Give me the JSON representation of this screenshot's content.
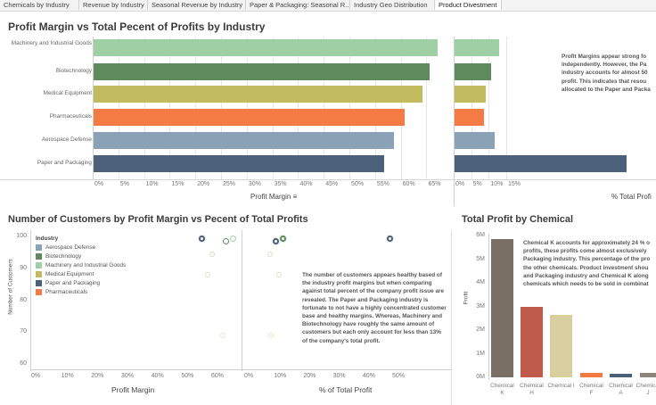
{
  "tabs": [
    "Chemicals by Industry",
    "Revenue by Industry",
    "Seasonal Revenue by Industry",
    "Paper & Packaging: Seasonal R...",
    "Industry Geo Distribution",
    "Product Divestment"
  ],
  "active_tab_index": 5,
  "colors": {
    "machinery": "#9fd0a5",
    "biotechnology": "#5f8a5d",
    "medical": "#c2bb60",
    "pharmaceuticals": "#f47b43",
    "aerospace": "#8ba2b6",
    "paper": "#4c6179",
    "chem_k": "#7a6f64",
    "chem_h": "#c05a4a",
    "chem_i": "#d9cf9e"
  },
  "top": {
    "title": "Profit Margin vs Total Pecent of Profits by Industry",
    "categories": [
      "Machinery and Industrial Goods",
      "Biotechnology",
      "Medical Equipment",
      "Pharmaceuticals",
      "Aerospace Defense",
      "Paper and Packaging"
    ],
    "margin_axis_ticks": [
      "0%",
      "5%",
      "10%",
      "15%",
      "20%",
      "25%",
      "30%",
      "35%",
      "40%",
      "45%",
      "50%",
      "55%",
      "60%",
      "65%"
    ],
    "margin_axis_title": "Profit Margin",
    "total_axis_ticks": [
      "0%",
      "5%",
      "10%",
      "15%"
    ],
    "total_axis_title": "% Total Profi",
    "note": "Profit Margins appear strong fo independently. However, the Pa industry accounts for almost 50 profit. This indicates that resou allocated to the Paper and Packa"
  },
  "bottom_left": {
    "title": "Number of Customers by Profit Margin vs Pecent of Total Profits",
    "y_axis_title": "Number of Customers",
    "y_ticks": [
      "100",
      "90",
      "80",
      "70",
      "60"
    ],
    "x1_ticks": [
      "0%",
      "10%",
      "20%",
      "30%",
      "40%",
      "50%",
      "60%"
    ],
    "x1_title": "Profit Margin",
    "x2_ticks": [
      "0%",
      "10%",
      "20%",
      "30%",
      "40%",
      "50%"
    ],
    "x2_title": "% of Total Profit",
    "legend_title": "Industry",
    "legend": [
      "Aerospace Defense",
      "Biotechnology",
      "Machinery and Industrial Goods",
      "Medical Equipment",
      "Paper and Packaging",
      "Pharmaceuticals"
    ],
    "note": "The number of customers appears healthy based of the industry profit margins but when comparing against total percent of the company profit issue are revealed. The Paper and Packaging industry is fortunate to not have a highly concentrated customer base and healthy margins. Whereas, Machinery and Biotechnology have roughly the same amount of customers but each only account for less than 13% of the company's total profit."
  },
  "bottom_right": {
    "title": "Total Profit by Chemical",
    "y_axis_title": "Profit",
    "y_ticks": [
      "6M",
      "5M",
      "4M",
      "3M",
      "2M",
      "1M",
      "0M"
    ],
    "bars": [
      {
        "label_top": "Chemical",
        "label_bottom": "K",
        "value": 5.85
      },
      {
        "label_top": "Chemical",
        "label_bottom": "H",
        "value": 3.0
      },
      {
        "label_top": "Chemical I",
        "label_bottom": "",
        "value": 2.65
      },
      {
        "label_top": "Chemical",
        "label_bottom": "F",
        "value": 0.18
      },
      {
        "label_top": "Chemical",
        "label_bottom": "A",
        "value": 0.16
      },
      {
        "label_top": "Chemical",
        "label_bottom": "J",
        "value": 0.18
      }
    ],
    "note": "Chemical K accounts for approximately 24 % o profits, these profits come almost exclusively Packaging industry. This percentage of the pro the other chemicals. Product investment shou and Packaging industry and Chemical K along chemicals which needs to be sold in combinat"
  }
}
